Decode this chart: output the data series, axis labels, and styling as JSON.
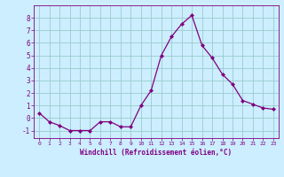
{
  "x": [
    0,
    1,
    2,
    3,
    4,
    5,
    6,
    7,
    8,
    9,
    10,
    11,
    12,
    13,
    14,
    15,
    16,
    17,
    18,
    19,
    20,
    21,
    22,
    23
  ],
  "y": [
    0.4,
    -0.3,
    -0.6,
    -1.0,
    -1.0,
    -1.0,
    -0.3,
    -0.3,
    -0.7,
    -0.7,
    1.0,
    2.2,
    5.0,
    6.5,
    7.5,
    8.2,
    5.8,
    4.8,
    3.5,
    2.7,
    1.4,
    1.1,
    0.8,
    0.7
  ],
  "line_color": "#800080",
  "marker": "D",
  "marker_size": 2.0,
  "bg_color": "#cceeff",
  "grid_color": "#99cccc",
  "xlabel": "Windchill (Refroidissement éolien,°C)",
  "xlabel_color": "#800080",
  "ylabel_ticks": [
    -1,
    0,
    1,
    2,
    3,
    4,
    5,
    6,
    7,
    8
  ],
  "xticks": [
    0,
    1,
    2,
    3,
    4,
    5,
    6,
    7,
    8,
    9,
    10,
    11,
    12,
    13,
    14,
    15,
    16,
    17,
    18,
    19,
    20,
    21,
    22,
    23
  ],
  "ylim": [
    -1.6,
    9.0
  ],
  "xlim": [
    -0.5,
    23.5
  ]
}
